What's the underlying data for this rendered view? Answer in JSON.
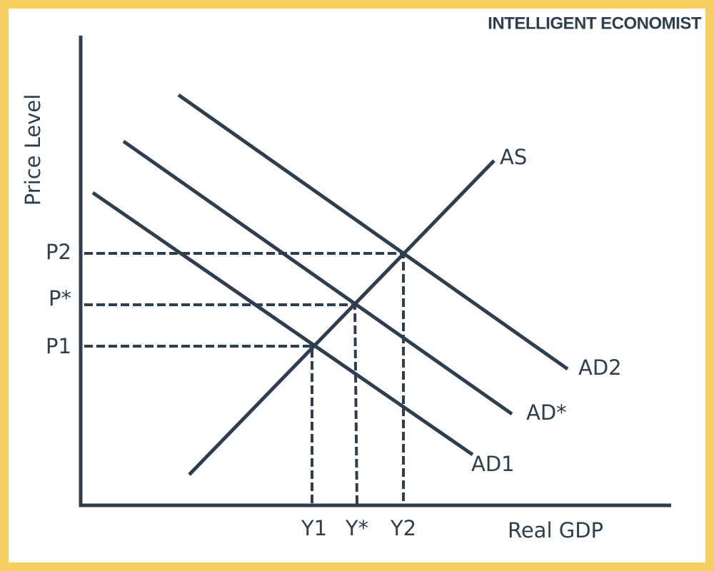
{
  "brand": "INTELLIGENT ECONOMIST",
  "axes": {
    "y_label": "Price Level",
    "x_label": "Real GDP"
  },
  "curves": [
    {
      "label": "AS"
    },
    {
      "label": "AD2"
    },
    {
      "label": "AD*"
    },
    {
      "label": "AD1"
    }
  ],
  "price_levels": [
    "P2",
    "P*",
    "P1"
  ],
  "outputs": [
    "Y1",
    "Y*",
    "Y2"
  ]
}
